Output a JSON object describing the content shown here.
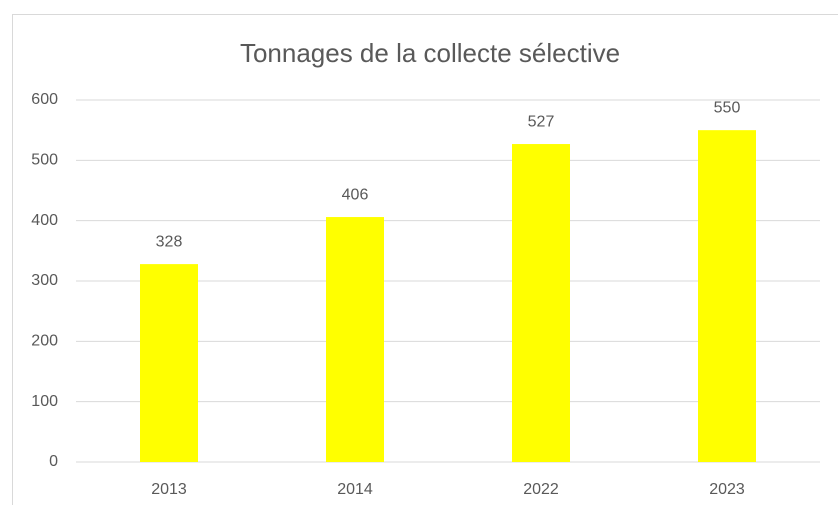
{
  "chart_data": {
    "type": "bar",
    "title": "Tonnages de la collecte sélective",
    "categories": [
      "2013",
      "2014",
      "2022",
      "2023"
    ],
    "values": [
      328,
      406,
      527,
      550
    ],
    "color": "#ffff00",
    "ylim": [
      0,
      600
    ],
    "yticks": [
      0,
      100,
      200,
      300,
      400,
      500,
      600
    ],
    "grid": true
  }
}
